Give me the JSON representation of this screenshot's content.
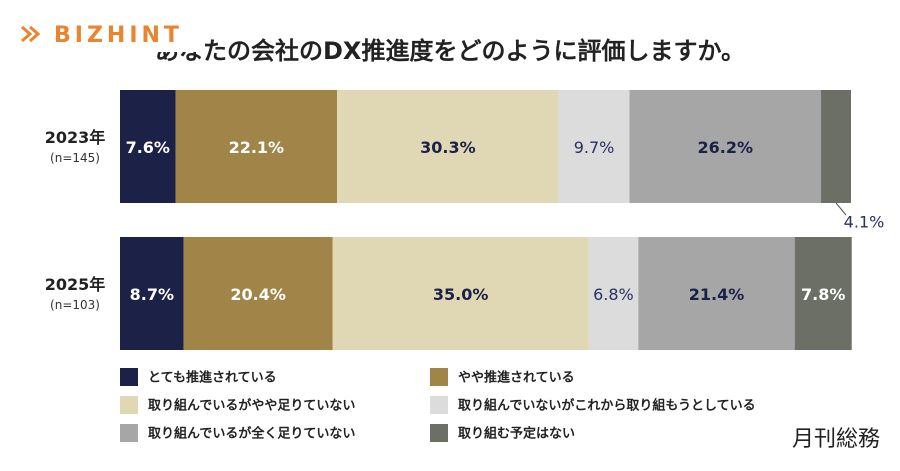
{
  "chart_data": {
    "type": "stacked-bar-horizontal",
    "title": "あなたの会社のDX推進度をどのように評価しますか。",
    "logo": "BIZHINT",
    "source": "月刊総務",
    "categories": [
      "2023年",
      "2025年"
    ],
    "sample_sizes": [
      "(n=145)",
      "(n=103)"
    ],
    "xlim": [
      0,
      100
    ],
    "series": [
      {
        "name": "とても推進されている",
        "color": "#1b2147",
        "label_color": "#ffffff",
        "values": [
          7.6,
          8.7
        ],
        "value_labels": [
          "7.6%",
          "8.7%"
        ]
      },
      {
        "name": "やや推進されている",
        "color": "#a08448",
        "label_color": "#ffffff",
        "values": [
          22.1,
          20.4
        ],
        "value_labels": [
          "22.1%",
          "20.4%"
        ]
      },
      {
        "name": "取り組んでいるがやや足りていない",
        "color": "#e0d7b4",
        "label_color": "#1b2147",
        "values": [
          30.3,
          35.0
        ],
        "value_labels": [
          "30.3%",
          "35.0%"
        ]
      },
      {
        "name": "取り組んでいないがこれから取り組もうとしている",
        "color": "#dcdcdc",
        "label_color": "#2a3160",
        "values": [
          9.7,
          6.8
        ],
        "value_labels": [
          "9.7%",
          "6.8%"
        ]
      },
      {
        "name": "取り組んでいるが全く足りていない",
        "color": "#a6a6a6",
        "label_color": "#1b2147",
        "values": [
          26.2,
          21.4
        ],
        "value_labels": [
          "26.2%",
          "21.4%"
        ]
      },
      {
        "name": "取り組む予定はない",
        "color": "#6b6f66",
        "label_color": "#ffffff",
        "values": [
          4.1,
          7.8
        ],
        "value_labels": [
          "4.1%",
          "7.8%"
        ]
      }
    ]
  }
}
